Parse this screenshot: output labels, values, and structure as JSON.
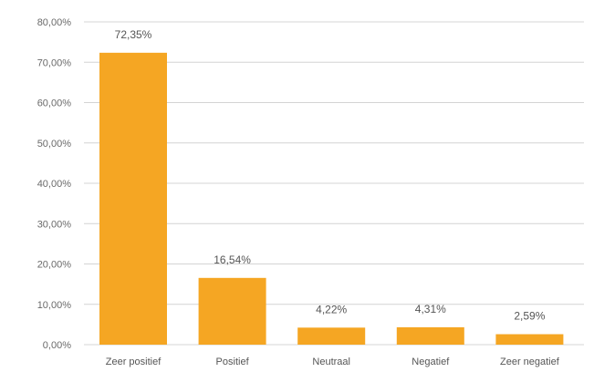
{
  "chart_data": {
    "type": "bar",
    "categories": [
      "Zeer positief",
      "Positief",
      "Neutraal",
      "Negatief",
      "Zeer negatief"
    ],
    "values": [
      72.35,
      16.54,
      4.22,
      4.31,
      2.59
    ],
    "data_labels": [
      "72,35%",
      "16,54%",
      "4,22%",
      "4,31%",
      "2,59%"
    ],
    "y_ticks": [
      0,
      10,
      20,
      30,
      40,
      50,
      60,
      70,
      80
    ],
    "y_tick_labels": [
      "0,00%",
      "10,00%",
      "20,00%",
      "30,00%",
      "40,00%",
      "50,00%",
      "60,00%",
      "70,00%",
      "80,00%"
    ],
    "ylim": [
      0,
      80
    ],
    "grid": true,
    "legend": "none",
    "title": "",
    "xlabel": "",
    "ylabel": "",
    "bar_color": "#f5a623",
    "grid_color": "#d4d4d4"
  }
}
